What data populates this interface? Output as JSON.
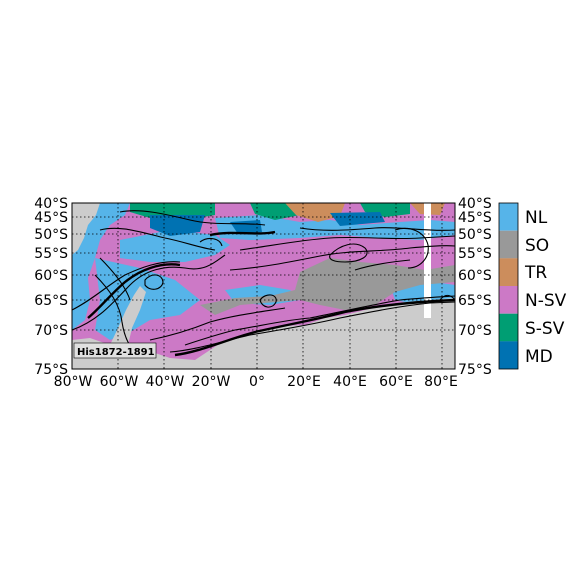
{
  "map": {
    "panel_label": "His1872-1891",
    "lat_ticks_left": [
      "40°S",
      "45°S",
      "50°S",
      "55°S",
      "60°S",
      "65°S",
      "70°S",
      "75°S"
    ],
    "lat_ticks_right": [
      "40°S",
      "45°S",
      "50°S",
      "55°S",
      "60°S",
      "65°S",
      "70°S",
      "75°S"
    ],
    "lon_ticks": [
      "80°W",
      "60°W",
      "40°W",
      "20°W",
      "0°",
      "20°E",
      "40°E",
      "60°E",
      "80°E"
    ],
    "extent": {
      "lon_min": -80,
      "lon_max": 85,
      "lat_min": -75,
      "lat_max": -40
    },
    "grid_lines": true,
    "colors": {
      "land": "#cccccc",
      "NL": "#56b4e9",
      "SO": "#999999",
      "TR": "#cc8d5c",
      "N-SV": "#cc79c6",
      "S-SV": "#009e73",
      "MD": "#0072b2"
    }
  },
  "legend": {
    "items": [
      {
        "label": "NL",
        "color": "#56b4e9"
      },
      {
        "label": "SO",
        "color": "#999999"
      },
      {
        "label": "TR",
        "color": "#cc8d5c"
      },
      {
        "label": "N-SV",
        "color": "#cc79c6"
      },
      {
        "label": "S-SV",
        "color": "#009e73"
      },
      {
        "label": "MD",
        "color": "#0072b2"
      }
    ]
  }
}
